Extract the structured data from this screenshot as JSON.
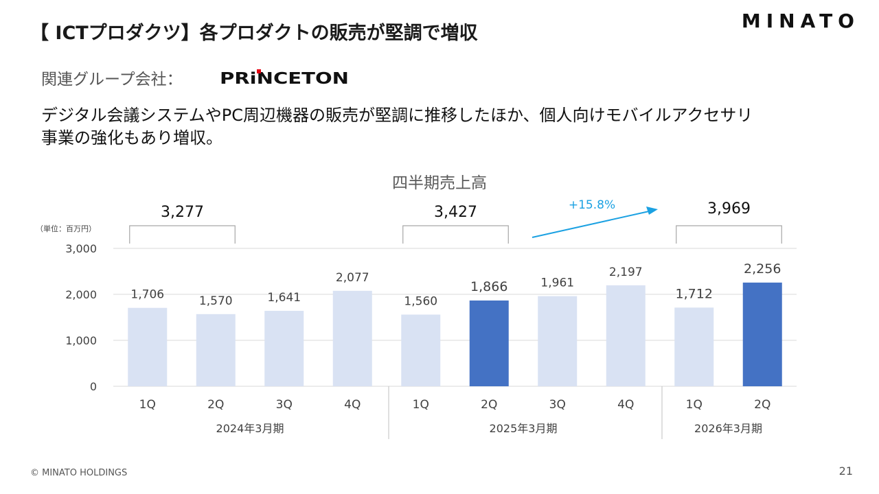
{
  "header": {
    "title": "【 ICTプロダクツ】各プロダクトの販売が堅調で増収",
    "brand": "MINATO"
  },
  "related": {
    "label": "関連グループ会社：",
    "logo_text": "PRiNCETON"
  },
  "description": {
    "line1": "デジタル会議システムやPC周辺機器の販売が堅調に推移したほか、個人向けモバイルアクセサリ",
    "line2": "事業の強化もあり増収。"
  },
  "chart_data": {
    "type": "bar",
    "title": "四半期売上高",
    "unit_label": "（単位：百万円）",
    "categories": [
      "1Q",
      "2Q",
      "3Q",
      "4Q",
      "1Q",
      "2Q",
      "3Q",
      "4Q",
      "1Q",
      "2Q"
    ],
    "values": [
      1706,
      1570,
      1641,
      2077,
      1560,
      1866,
      1961,
      2197,
      1712,
      2256
    ],
    "value_labels": [
      "1,706",
      "1,570",
      "1,641",
      "2,077",
      "1,560",
      "1,866",
      "1,961",
      "2,197",
      "1,712",
      "2,256"
    ],
    "highlight": [
      false,
      false,
      false,
      false,
      false,
      true,
      false,
      false,
      false,
      true
    ],
    "periods": [
      {
        "label": "2024年3月期",
        "start": 0,
        "end": 3
      },
      {
        "label": "2025年3月期",
        "start": 4,
        "end": 7
      },
      {
        "label": "2026年3月期",
        "start": 8,
        "end": 9
      }
    ],
    "half_totals": [
      {
        "label": "3,277",
        "start": 0,
        "end": 1
      },
      {
        "label": "3,427",
        "start": 4,
        "end": 5
      },
      {
        "label": "3,969",
        "start": 8,
        "end": 9
      }
    ],
    "growth_label": "+15.8%",
    "yticks": [
      0,
      1000,
      2000,
      3000
    ],
    "ytick_labels": [
      "0",
      "1,000",
      "2,000",
      "3,000"
    ],
    "ylim": [
      0,
      3000
    ],
    "grid": true,
    "colors": {
      "bar": "#d9e2f3",
      "highlight": "#4472c4",
      "arrow": "#1ba1e2",
      "grid": "#d9d9d9",
      "text": "#404040"
    }
  },
  "footer": {
    "copyright": "© MINATO HOLDINGS",
    "page": "21"
  }
}
